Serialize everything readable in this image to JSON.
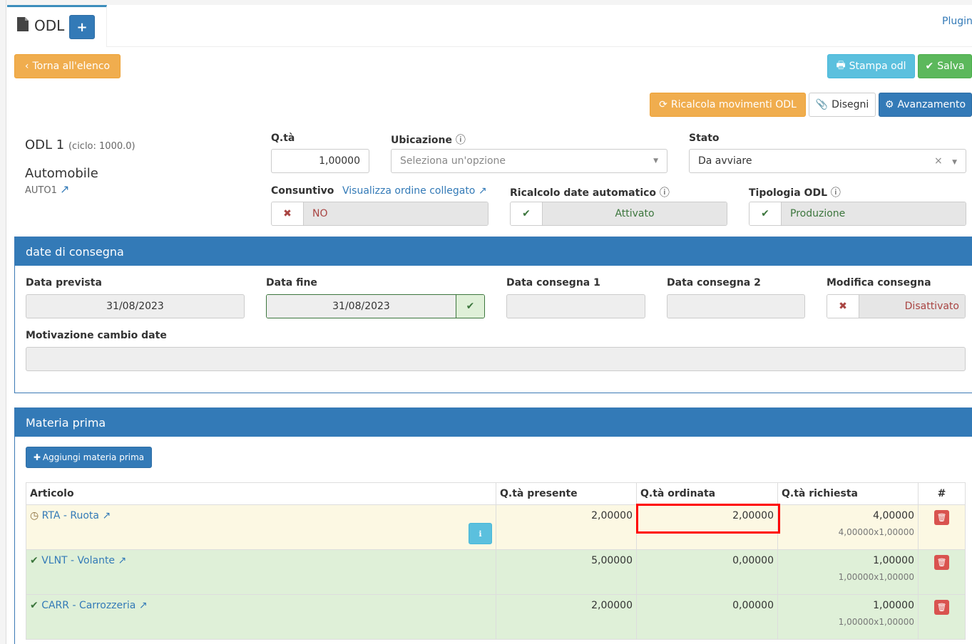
{
  "tab": {
    "title": "ODL",
    "add": "+"
  },
  "plugin_link": "Plugin",
  "buttons": {
    "back": "Torna all'elenco",
    "print": "Stampa odl",
    "save": "Salva",
    "recalc": "Ricalcola movimenti ODL",
    "drawings": "Disegni",
    "progress": "Avanzamento"
  },
  "header": {
    "odl": "ODL 1",
    "ciclo": "(ciclo: 1000.0)",
    "article": "Automobile",
    "code": "AUTO1"
  },
  "form": {
    "qta_label": "Q.tà",
    "qta_value": "1,00000",
    "ubicazione_label": "Ubicazione",
    "ubicazione_placeholder": "Seleziona un'opzione",
    "stato_label": "Stato",
    "stato_value": "Da avviare",
    "consuntivo_label": "Consuntivo",
    "consuntivo_link": "Visualizza ordine collegato",
    "consuntivo_value": "NO",
    "ricalcolo_label": "Ricalcolo date automatico",
    "ricalcolo_value": "Attivato",
    "tipologia_label": "Tipologia ODL",
    "tipologia_value": "Produzione"
  },
  "delivery": {
    "title": "date di consegna",
    "prevista_label": "Data prevista",
    "prevista_value": "31/08/2023",
    "fine_label": "Data fine",
    "fine_value": "31/08/2023",
    "c1_label": "Data consegna 1",
    "c2_label": "Data consegna 2",
    "modifica_label": "Modifica consegna",
    "modifica_value": "Disattivato",
    "motivazione_label": "Motivazione cambio date"
  },
  "materials": {
    "title": "Materia prima",
    "add": "Aggiungi materia prima",
    "columns": [
      "Articolo",
      "Q.tà presente",
      "Q.tà ordinata",
      "Q.tà richiesta",
      "#"
    ],
    "rows": [
      {
        "status": "clock",
        "article": "RTA - Ruota",
        "presente": "2,00000",
        "ordinata": "2,00000",
        "richiesta": "4,00000",
        "formula": "4,00000x1,00000",
        "bg": "#fcf8e3"
      },
      {
        "status": "check",
        "article": "VLNT - Volante",
        "presente": "5,00000",
        "ordinata": "0,00000",
        "richiesta": "1,00000",
        "formula": "1,00000x1,00000",
        "bg": "#dff0d8"
      },
      {
        "status": "check",
        "article": "CARR - Carrozzeria",
        "presente": "2,00000",
        "ordinata": "0,00000",
        "richiesta": "1,00000",
        "formula": "1,00000x1,00000",
        "bg": "#dff0d8"
      }
    ]
  },
  "colors": {
    "primary": "#337ab7",
    "warning": "#f0ad4e",
    "success": "#5cb85c",
    "info": "#5bc0de",
    "danger": "#d9534f",
    "highlight": "#ff0000"
  }
}
